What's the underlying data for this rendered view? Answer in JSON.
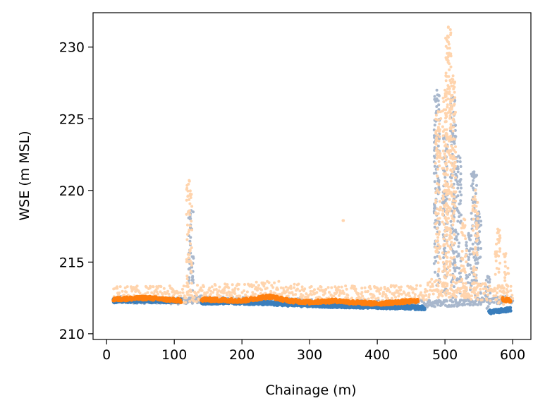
{
  "chart_data": {
    "type": "scatter",
    "title": "",
    "xlabel": "Chainage (m)",
    "ylabel": "WSE (m MSL)",
    "xlim": [
      -20,
      627
    ],
    "ylim": [
      209.6,
      232.4
    ],
    "xticks": [
      0,
      100,
      200,
      300,
      400,
      500,
      600
    ],
    "yticks": [
      210,
      215,
      220,
      225,
      230
    ],
    "grid": false,
    "legend": "none",
    "series": [
      {
        "color": "#a8b7cc",
        "marker_size": 2,
        "baseline": [
          [
            10,
            212.3
          ],
          [
            110,
            212.2
          ],
          [
            140,
            212.3
          ],
          [
            200,
            212.2
          ],
          [
            300,
            212.1
          ],
          [
            400,
            212.0
          ],
          [
            470,
            212.0
          ],
          [
            480,
            212.0
          ],
          [
            540,
            212.1
          ],
          [
            600,
            212.3
          ]
        ],
        "spikes": [
          {
            "x": 125,
            "low": 212.5,
            "high": 218.6
          },
          {
            "x": 488,
            "low": 212.5,
            "high": 227.0
          },
          {
            "x": 500,
            "low": 212.5,
            "high": 223.8
          },
          {
            "x": 512,
            "low": 212.5,
            "high": 226.5
          },
          {
            "x": 520,
            "low": 212.5,
            "high": 222.4
          },
          {
            "x": 535,
            "low": 212.5,
            "high": 217.0
          },
          {
            "x": 543,
            "low": 212.5,
            "high": 221.3
          },
          {
            "x": 550,
            "low": 212.5,
            "high": 218.5
          },
          {
            "x": 563,
            "low": 211.5,
            "high": 214.0
          }
        ]
      },
      {
        "color": "#ffd4ad",
        "marker_size": 2,
        "baseline": [
          [
            10,
            212.5
          ],
          [
            110,
            212.5
          ],
          [
            140,
            212.6
          ],
          [
            200,
            212.7
          ],
          [
            250,
            212.9
          ],
          [
            300,
            212.5
          ],
          [
            400,
            212.5
          ],
          [
            470,
            212.6
          ],
          [
            480,
            213.0
          ],
          [
            600,
            212.5
          ]
        ],
        "spikes": [
          {
            "x": 122,
            "low": 212.5,
            "high": 220.7
          },
          {
            "x": 350,
            "low": 217.9,
            "high": 217.9
          },
          {
            "x": 490,
            "low": 212.5,
            "high": 225.5
          },
          {
            "x": 500,
            "low": 212.5,
            "high": 227.0
          },
          {
            "x": 505,
            "low": 213.0,
            "high": 231.4
          },
          {
            "x": 512,
            "low": 212.5,
            "high": 228.0
          },
          {
            "x": 528,
            "low": 212.5,
            "high": 218.0
          },
          {
            "x": 545,
            "low": 212.5,
            "high": 220.0
          },
          {
            "x": 578,
            "low": 212.0,
            "high": 217.3
          },
          {
            "x": 590,
            "low": 212.0,
            "high": 215.6
          }
        ]
      },
      {
        "color": "#3a7ebc",
        "marker_size": 2.5,
        "segments": [
          [
            [
              10,
              212.3
            ],
            [
              110,
              212.3
            ]
          ],
          [
            [
              140,
              212.2
            ],
            [
              200,
              212.2
            ],
            [
              300,
              212.0
            ],
            [
              400,
              211.9
            ],
            [
              470,
              211.8
            ]
          ],
          [
            [
              565,
              211.5
            ],
            [
              597,
              211.7
            ]
          ]
        ]
      },
      {
        "color": "#ff7f0e",
        "marker_size": 2.5,
        "segments": [
          [
            [
              10,
              212.4
            ],
            [
              60,
              212.5
            ],
            [
              110,
              212.3
            ]
          ],
          [
            [
              140,
              212.4
            ],
            [
              200,
              212.3
            ],
            [
              240,
              212.6
            ],
            [
              270,
              212.3
            ],
            [
              300,
              212.2
            ],
            [
              340,
              212.3
            ],
            [
              360,
              212.2
            ],
            [
              400,
              212.1
            ],
            [
              460,
              212.3
            ]
          ],
          [
            [
              585,
              212.4
            ],
            [
              597,
              212.3
            ]
          ]
        ]
      }
    ]
  }
}
